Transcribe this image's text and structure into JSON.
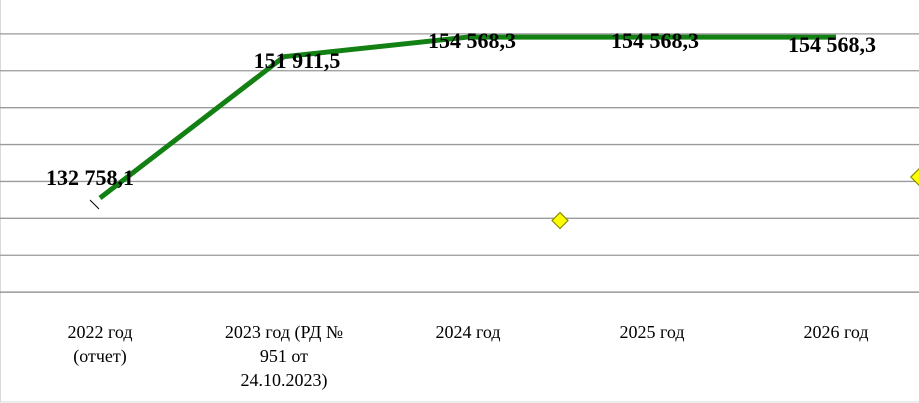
{
  "chart_data": {
    "type": "line",
    "categories": [
      [
        "2022 год",
        "(отчет)"
      ],
      [
        "2023 год (РД №",
        "951 от",
        "24.10.2023)"
      ],
      [
        "2024 год"
      ],
      [
        "2025 год"
      ],
      [
        "2026 год"
      ]
    ],
    "series": [
      {
        "color": "#138013",
        "values": [
          132758.1,
          151911.5,
          154568.3,
          154568.3,
          154568.3
        ],
        "value_labels": [
          "132 758,1",
          "151 911,5",
          "154 568,3",
          "154 568,3",
          "154 568,3"
        ]
      },
      {
        "color": "#ffff00",
        "marker": "diamond",
        "x": [
          2.5,
          4.45
        ],
        "values": [
          129700,
          135600
        ]
      }
    ],
    "ylim": [
      115000,
      160000
    ],
    "yticks": [
      120000,
      125000,
      130000,
      135000,
      140000,
      145000,
      150000,
      155000,
      160000
    ],
    "grid": true,
    "ytick_labels": false
  }
}
